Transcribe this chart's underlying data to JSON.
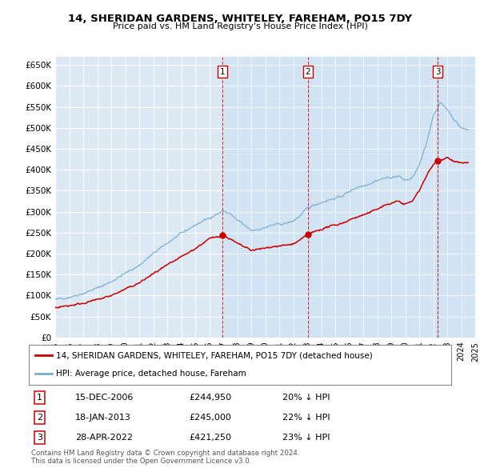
{
  "title": "14, SHERIDAN GARDENS, WHITELEY, FAREHAM, PO15 7DY",
  "subtitle": "Price paid vs. HM Land Registry's House Price Index (HPI)",
  "yticks": [
    0,
    50000,
    100000,
    150000,
    200000,
    250000,
    300000,
    350000,
    400000,
    450000,
    500000,
    550000,
    600000,
    650000
  ],
  "ylim": [
    0,
    670000
  ],
  "xlim_start": 1995.0,
  "xlim_end": 2025.0,
  "plot_bg_color": "#dce9f5",
  "highlight_color": "#cce0f0",
  "grid_color": "#ffffff",
  "red_line_color": "#cc0000",
  "blue_line_color": "#7aadcc",
  "transactions": [
    {
      "num": 1,
      "date_x": 2006.96,
      "price": 244950,
      "label": "15-DEC-2006",
      "price_label": "£244,950",
      "hpi_label": "20% ↓ HPI"
    },
    {
      "num": 2,
      "date_x": 2013.04,
      "price": 245000,
      "label": "18-JAN-2013",
      "price_label": "£245,000",
      "hpi_label": "22% ↓ HPI"
    },
    {
      "num": 3,
      "date_x": 2022.32,
      "price": 421250,
      "label": "28-APR-2022",
      "price_label": "£421,250",
      "hpi_label": "23% ↓ HPI"
    }
  ],
  "legend_red_label": "14, SHERIDAN GARDENS, WHITELEY, FAREHAM, PO15 7DY (detached house)",
  "legend_blue_label": "HPI: Average price, detached house, Fareham",
  "footer1": "Contains HM Land Registry data © Crown copyright and database right 2024.",
  "footer2": "This data is licensed under the Open Government Licence v3.0.",
  "hpi_anchors_x": [
    1995,
    1996,
    1997,
    1998,
    1999,
    2000,
    2001,
    2002,
    2003,
    2004,
    2005,
    2006,
    2007,
    2007.5,
    2008,
    2008.5,
    2009,
    2009.5,
    2010,
    2010.5,
    2011,
    2011.5,
    2012,
    2012.5,
    2013,
    2013.5,
    2014,
    2014.5,
    2015,
    2015.5,
    2016,
    2016.5,
    2017,
    2017.5,
    2018,
    2018.5,
    2019,
    2019.5,
    2020,
    2020.5,
    2021,
    2021.5,
    2022,
    2022.5,
    2023,
    2023.5,
    2024,
    2024.5
  ],
  "hpi_anchors_y": [
    90000,
    96000,
    105000,
    118000,
    133000,
    153000,
    172000,
    200000,
    225000,
    248000,
    268000,
    285000,
    302000,
    295000,
    280000,
    268000,
    255000,
    258000,
    262000,
    268000,
    270000,
    272000,
    278000,
    290000,
    308000,
    316000,
    322000,
    328000,
    332000,
    338000,
    348000,
    358000,
    362000,
    368000,
    375000,
    380000,
    382000,
    385000,
    375000,
    380000,
    410000,
    460000,
    530000,
    560000,
    545000,
    520000,
    500000,
    495000
  ],
  "price_anchors_x": [
    1995,
    1996,
    1997,
    1998,
    1999,
    2000,
    2001,
    2002,
    2003,
    2004,
    2005,
    2006,
    2006.96,
    2007.5,
    2008,
    2008.5,
    2009,
    2009.5,
    2010,
    2010.5,
    2011,
    2011.5,
    2012,
    2012.5,
    2013.04,
    2013.5,
    2014,
    2014.5,
    2015,
    2015.5,
    2016,
    2016.5,
    2017,
    2017.5,
    2018,
    2018.5,
    2019,
    2019.5,
    2020,
    2020.5,
    2021,
    2021.5,
    2022,
    2022.32,
    2023,
    2023.5,
    2024,
    2024.5
  ],
  "price_anchors_y": [
    72000,
    76000,
    82000,
    90000,
    100000,
    115000,
    130000,
    152000,
    172000,
    192000,
    212000,
    235000,
    244950,
    235000,
    224000,
    216000,
    208000,
    210000,
    213000,
    217000,
    218000,
    220000,
    223000,
    232000,
    245000,
    252000,
    258000,
    264000,
    268000,
    273000,
    280000,
    287000,
    292000,
    298000,
    307000,
    315000,
    320000,
    325000,
    318000,
    325000,
    350000,
    385000,
    412000,
    421250,
    430000,
    420000,
    415000,
    418000
  ]
}
